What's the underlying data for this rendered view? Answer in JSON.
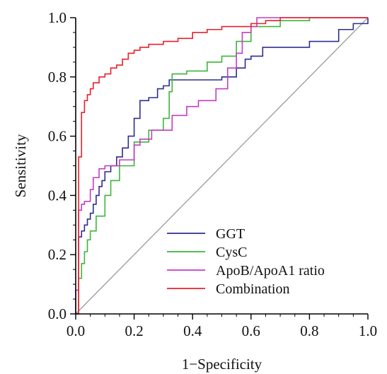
{
  "chart_data": {
    "type": "line",
    "title": "",
    "xlabel": "1−Specificity",
    "ylabel": "Sensitivity",
    "xlim": [
      0,
      1
    ],
    "ylim": [
      0,
      1
    ],
    "x_ticks": [
      "0.0",
      "0.2",
      "0.4",
      "0.6",
      "0.8",
      "1.0"
    ],
    "y_ticks": [
      "0.0",
      "0.2",
      "0.4",
      "0.6",
      "0.8",
      "1.0"
    ],
    "grid": false,
    "legend_position": "bottom-right",
    "reference_line": {
      "x": [
        0,
        1
      ],
      "y": [
        0,
        1
      ],
      "color": "#9a9a9a"
    },
    "series": [
      {
        "name": "GGT",
        "color": "#2e2e8f",
        "x": [
          0,
          0.01,
          0.01,
          0.02,
          0.03,
          0.04,
          0.05,
          0.06,
          0.07,
          0.08,
          0.09,
          0.1,
          0.12,
          0.14,
          0.16,
          0.18,
          0.2,
          0.22,
          0.25,
          0.28,
          0.3,
          0.32,
          0.4,
          0.48,
          0.5,
          0.55,
          0.58,
          0.6,
          0.64,
          0.7,
          0.8,
          0.9,
          0.95,
          1.0
        ],
        "y": [
          0,
          0.15,
          0.26,
          0.28,
          0.3,
          0.32,
          0.34,
          0.37,
          0.4,
          0.43,
          0.45,
          0.48,
          0.5,
          0.53,
          0.56,
          0.6,
          0.66,
          0.72,
          0.73,
          0.76,
          0.77,
          0.79,
          0.79,
          0.79,
          0.8,
          0.83,
          0.86,
          0.87,
          0.9,
          0.9,
          0.92,
          0.96,
          0.98,
          1.0
        ]
      },
      {
        "name": "CysC",
        "color": "#3cb53c",
        "x": [
          0,
          0.01,
          0.01,
          0.02,
          0.03,
          0.04,
          0.05,
          0.07,
          0.1,
          0.12,
          0.15,
          0.2,
          0.25,
          0.3,
          0.32,
          0.33,
          0.38,
          0.45,
          0.5,
          0.55,
          0.6,
          0.65,
          0.7,
          0.8,
          1.0
        ],
        "y": [
          0,
          0.08,
          0.12,
          0.17,
          0.21,
          0.25,
          0.28,
          0.33,
          0.4,
          0.45,
          0.5,
          0.58,
          0.62,
          0.66,
          0.75,
          0.81,
          0.82,
          0.85,
          0.87,
          0.92,
          0.97,
          0.97,
          0.99,
          1.0,
          1.0
        ]
      },
      {
        "name": "ApoB/ApoA1 ratio",
        "color": "#c23cc2",
        "x": [
          0,
          0,
          0.01,
          0.01,
          0.02,
          0.03,
          0.05,
          0.06,
          0.08,
          0.1,
          0.12,
          0.15,
          0.2,
          0.22,
          0.26,
          0.3,
          0.33,
          0.38,
          0.42,
          0.48,
          0.52,
          0.55,
          0.57,
          0.6,
          0.62,
          1.0
        ],
        "y": [
          0,
          0.08,
          0.31,
          0.35,
          0.37,
          0.38,
          0.42,
          0.46,
          0.49,
          0.5,
          0.5,
          0.52,
          0.57,
          0.59,
          0.62,
          0.62,
          0.67,
          0.7,
          0.72,
          0.76,
          0.83,
          0.88,
          0.95,
          0.97,
          1.0,
          1.0
        ]
      },
      {
        "name": "Combination",
        "color": "#e8202a",
        "x": [
          0,
          0.01,
          0.01,
          0.02,
          0.02,
          0.03,
          0.04,
          0.05,
          0.06,
          0.08,
          0.1,
          0.12,
          0.14,
          0.16,
          0.18,
          0.2,
          0.22,
          0.25,
          0.3,
          0.35,
          0.4,
          0.45,
          0.5,
          0.6,
          0.65,
          0.7,
          1.0
        ],
        "y": [
          0,
          0.38,
          0.53,
          0.6,
          0.68,
          0.72,
          0.74,
          0.76,
          0.78,
          0.8,
          0.81,
          0.83,
          0.84,
          0.86,
          0.88,
          0.89,
          0.9,
          0.91,
          0.92,
          0.93,
          0.95,
          0.96,
          0.97,
          0.98,
          0.99,
          1.0,
          1.0
        ]
      }
    ]
  }
}
